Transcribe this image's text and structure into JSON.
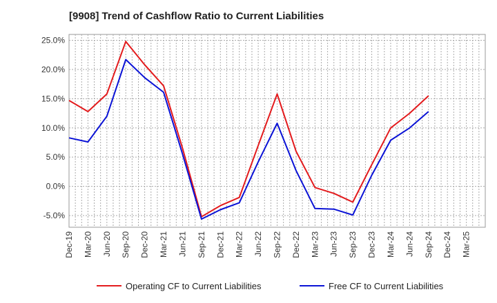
{
  "chart_data": {
    "type": "line",
    "title": "[9908]  Trend of Cashflow Ratio to Current Liabilities",
    "xlabel": "",
    "ylabel": "",
    "categories": [
      "Dec-19",
      "Mar-20",
      "Jun-20",
      "Sep-20",
      "Dec-20",
      "Mar-21",
      "Jun-21",
      "Sep-21",
      "Dec-21",
      "Mar-22",
      "Jun-22",
      "Sep-22",
      "Dec-22",
      "Mar-23",
      "Jun-23",
      "Sep-23",
      "Dec-23",
      "Mar-24",
      "Jun-24",
      "Sep-24",
      "Dec-24",
      "Mar-25"
    ],
    "y_ticks": [
      "25.0%",
      "20.0%",
      "15.0%",
      "10.0%",
      "5.0%",
      "0.0%",
      "-5.0%"
    ],
    "y_tick_values": [
      25,
      20,
      15,
      10,
      5,
      0,
      -5
    ],
    "ylim": [
      -7,
      26
    ],
    "grid": true,
    "legend_position": "bottom",
    "series": [
      {
        "name": "Operating CF to Current Liabilities",
        "color": "#e31a1c",
        "values": [
          14.7,
          12.8,
          15.8,
          24.8,
          20.8,
          17.2,
          6.5,
          -5.2,
          -3.3,
          -1.9,
          7.0,
          15.8,
          6.0,
          -0.2,
          -1.2,
          -2.7,
          3.7,
          10.0,
          12.5,
          15.5,
          null,
          null
        ]
      },
      {
        "name": "Free CF to Current Liabilities",
        "color": "#0a12d6",
        "values": [
          8.3,
          7.6,
          12.0,
          21.7,
          18.6,
          16.1,
          5.5,
          -5.6,
          -4.0,
          -2.8,
          4.2,
          10.8,
          2.7,
          -3.8,
          -3.9,
          -4.9,
          1.9,
          7.9,
          10.0,
          12.8,
          null,
          null
        ]
      }
    ]
  }
}
